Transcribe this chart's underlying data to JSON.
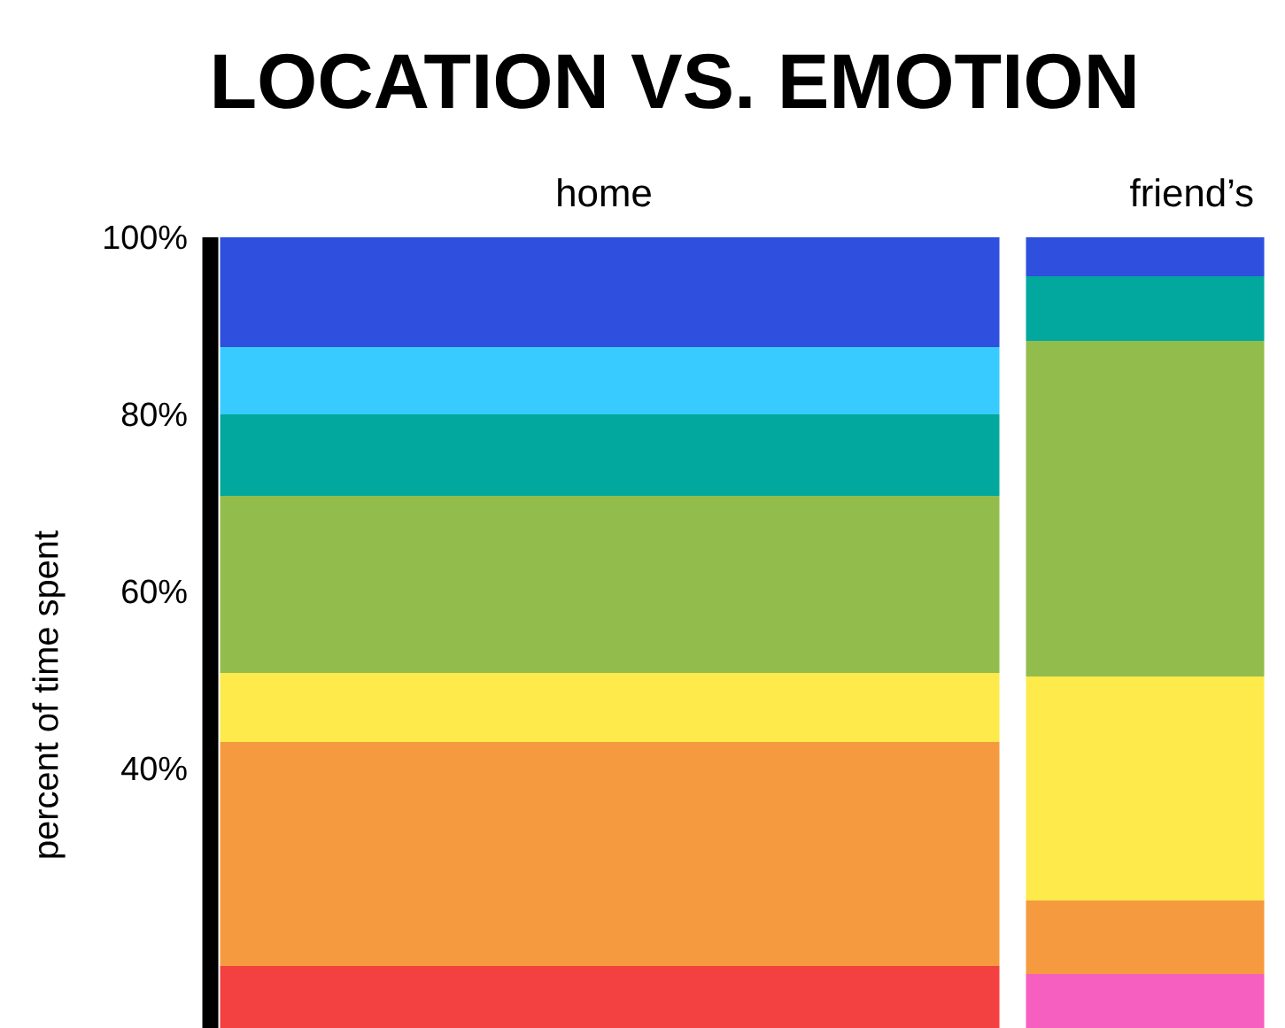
{
  "chart_data": {
    "type": "bar",
    "title": "LOCATION VS. EMOTION",
    "ylabel": "percent of time spent",
    "categories": [
      "home",
      "friend’s"
    ],
    "series": [
      {
        "color": "#f34040",
        "base": [
          10.7,
          null
        ],
        "values": [
          7.0,
          null
        ]
      },
      {
        "color": "#f65fbf",
        "base": [
          null,
          10.7
        ],
        "values": [
          null,
          6.1
        ]
      },
      {
        "color": "#f69a3f",
        "base": [
          17.7,
          16.8
        ],
        "values": [
          25.3,
          8.3
        ]
      },
      {
        "color": "#feea4b",
        "base": [
          43,
          25.1
        ],
        "values": [
          7.8,
          25.3
        ]
      },
      {
        "color": "#92bd4d",
        "base": [
          50.8,
          50.4
        ],
        "values": [
          20,
          37.9
        ]
      },
      {
        "color": "#02a89d",
        "base": [
          70.8,
          88.3
        ],
        "values": [
          9.2,
          7.3
        ]
      },
      {
        "color": "#37cbff",
        "base": [
          80,
          null
        ],
        "values": [
          7.6,
          null
        ]
      },
      {
        "color": "#2f4fdf",
        "base": [
          87.6,
          95.6
        ],
        "values": [
          12.4,
          4.4
        ]
      }
    ],
    "ylim": [
      10.7,
      100
    ],
    "yticks": [
      {
        "value": 40,
        "label": "40%"
      },
      {
        "value": 60,
        "label": "60%"
      },
      {
        "value": 80,
        "label": "80%"
      },
      {
        "value": 100,
        "label": "100%"
      }
    ],
    "grid": false
  }
}
